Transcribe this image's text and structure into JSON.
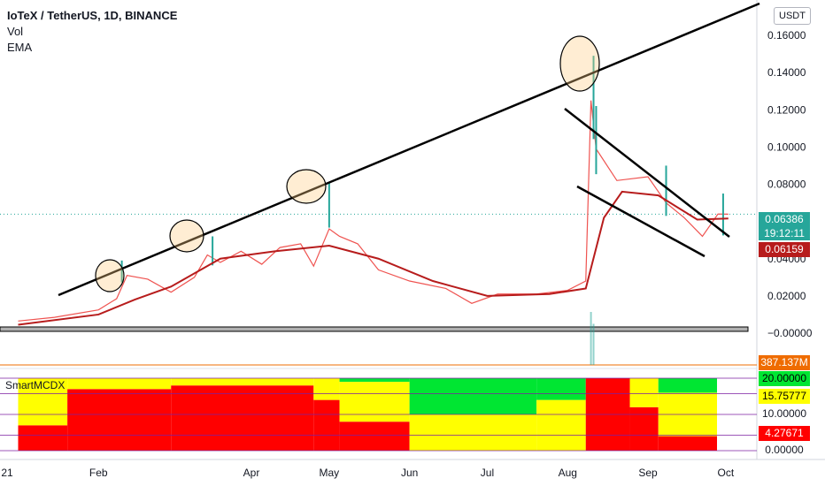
{
  "header": {
    "title": "IoTeX / TetherUS, 1D, BINANCE",
    "indicator_vol": "Vol",
    "indicator_ema": "EMA",
    "unit_button": "USDT",
    "indicator_panel_label": "SmartMCDX"
  },
  "price_tags": {
    "current_price": "0.06386",
    "countdown": "19:12:11",
    "ema_value": "0.06159",
    "volume_value": "387.137M",
    "mcdx_1": "20.00000",
    "mcdx_2": "15.75777",
    "mcdx_3": "10.00000",
    "mcdx_4": "4.27671",
    "mcdx_5": "0.00000"
  },
  "colors": {
    "up": "#26a69a",
    "down": "#ef5350",
    "ema": "#b71c1c",
    "volume": "#ef6c00",
    "mcdx_green": "#00e632",
    "mcdx_yellow": "#ffff00",
    "mcdx_red": "#ff0000"
  },
  "chart_data": {
    "type": "candlestick",
    "x_tick_labels": [
      "21",
      "Feb",
      "Apr",
      "May",
      "Jun",
      "Jul",
      "Aug",
      "Sep",
      "Oct"
    ],
    "y_tick_labels": [
      "0.16000",
      "0.14000",
      "0.12000",
      "0.10000",
      "0.08000",
      "0.04000",
      "0.02000",
      "−0.00000"
    ],
    "y_ticks": [
      0.16,
      0.14,
      0.12,
      0.1,
      0.08,
      0.04,
      0.02,
      0.0
    ],
    "ylim": [
      -0.006,
      0.172
    ],
    "price_close_path": [
      [
        "2021-01-01",
        0.0065
      ],
      [
        "2021-01-15",
        0.0085
      ],
      [
        "2021-02-01",
        0.0125
      ],
      [
        "2021-02-08",
        0.0185
      ],
      [
        "2021-02-12",
        0.031
      ],
      [
        "2021-02-20",
        0.029
      ],
      [
        "2021-03-01",
        0.022
      ],
      [
        "2021-03-10",
        0.03
      ],
      [
        "2021-03-15",
        0.042
      ],
      [
        "2021-03-20",
        0.038
      ],
      [
        "2021-03-28",
        0.044
      ],
      [
        "2021-04-05",
        0.037
      ],
      [
        "2021-04-12",
        0.046
      ],
      [
        "2021-04-20",
        0.048
      ],
      [
        "2021-04-25",
        0.036
      ],
      [
        "2021-05-01",
        0.056
      ],
      [
        "2021-05-05",
        0.052
      ],
      [
        "2021-05-12",
        0.048
      ],
      [
        "2021-05-20",
        0.034
      ],
      [
        "2021-06-01",
        0.028
      ],
      [
        "2021-06-15",
        0.024
      ],
      [
        "2021-06-25",
        0.016
      ],
      [
        "2021-07-05",
        0.021
      ],
      [
        "2021-07-20",
        0.021
      ],
      [
        "2021-08-01",
        0.023
      ],
      [
        "2021-08-08",
        0.028
      ],
      [
        "2021-08-10",
        0.125
      ],
      [
        "2021-08-12",
        0.099
      ],
      [
        "2021-08-20",
        0.082
      ],
      [
        "2021-09-01",
        0.084
      ],
      [
        "2021-09-08",
        0.07
      ],
      [
        "2021-09-15",
        0.062
      ],
      [
        "2021-09-22",
        0.052
      ],
      [
        "2021-09-28",
        0.064
      ],
      [
        "2021-10-02",
        0.0639
      ]
    ],
    "candle_highs": [
      [
        "2021-02-10",
        0.039
      ],
      [
        "2021-03-17",
        0.052
      ],
      [
        "2021-05-01",
        0.081
      ],
      [
        "2021-08-11",
        0.149
      ],
      [
        "2021-08-12",
        0.122
      ],
      [
        "2021-09-08",
        0.09
      ],
      [
        "2021-09-30",
        0.075
      ]
    ],
    "ema_path": [
      [
        "2021-01-01",
        0.0045
      ],
      [
        "2021-02-01",
        0.01
      ],
      [
        "2021-02-15",
        0.018
      ],
      [
        "2021-03-01",
        0.025
      ],
      [
        "2021-03-20",
        0.04
      ],
      [
        "2021-04-10",
        0.044
      ],
      [
        "2021-05-01",
        0.047
      ],
      [
        "2021-05-20",
        0.04
      ],
      [
        "2021-06-10",
        0.028
      ],
      [
        "2021-07-01",
        0.02
      ],
      [
        "2021-07-25",
        0.021
      ],
      [
        "2021-08-08",
        0.024
      ],
      [
        "2021-08-15",
        0.062
      ],
      [
        "2021-08-22",
        0.076
      ],
      [
        "2021-09-05",
        0.074
      ],
      [
        "2021-09-20",
        0.061
      ],
      [
        "2021-10-02",
        0.0616
      ]
    ],
    "volume_spikes": [
      [
        "2021-08-10",
        387137000
      ],
      [
        "2021-08-11",
        300000000
      ]
    ],
    "mcdx_panel": {
      "ylim": [
        0,
        20
      ],
      "levels": [
        20,
        15.75777,
        10,
        4.27671,
        0
      ],
      "segments": [
        {
          "from": "2021-01-01",
          "to": "2021-01-20",
          "red": 7,
          "yellow": 13,
          "green": 0
        },
        {
          "from": "2021-01-20",
          "to": "2021-03-01",
          "red": 17,
          "yellow": 3,
          "green": 0
        },
        {
          "from": "2021-03-01",
          "to": "2021-04-25",
          "red": 18,
          "yellow": 2,
          "green": 0
        },
        {
          "from": "2021-04-25",
          "to": "2021-05-05",
          "red": 14,
          "yellow": 6,
          "green": 0
        },
        {
          "from": "2021-05-05",
          "to": "2021-06-01",
          "red": 8,
          "yellow": 11,
          "green": 1
        },
        {
          "from": "2021-06-01",
          "to": "2021-07-20",
          "red": 0,
          "yellow": 10,
          "green": 10
        },
        {
          "from": "2021-07-20",
          "to": "2021-08-08",
          "red": 0,
          "yellow": 14,
          "green": 6
        },
        {
          "from": "2021-08-08",
          "to": "2021-08-25",
          "red": 20,
          "yellow": 0,
          "green": 0
        },
        {
          "from": "2021-08-25",
          "to": "2021-09-05",
          "red": 12,
          "yellow": 8,
          "green": 0
        },
        {
          "from": "2021-09-05",
          "to": "2021-10-02",
          "red": 4,
          "yellow": 12,
          "green": 4
        }
      ]
    }
  }
}
